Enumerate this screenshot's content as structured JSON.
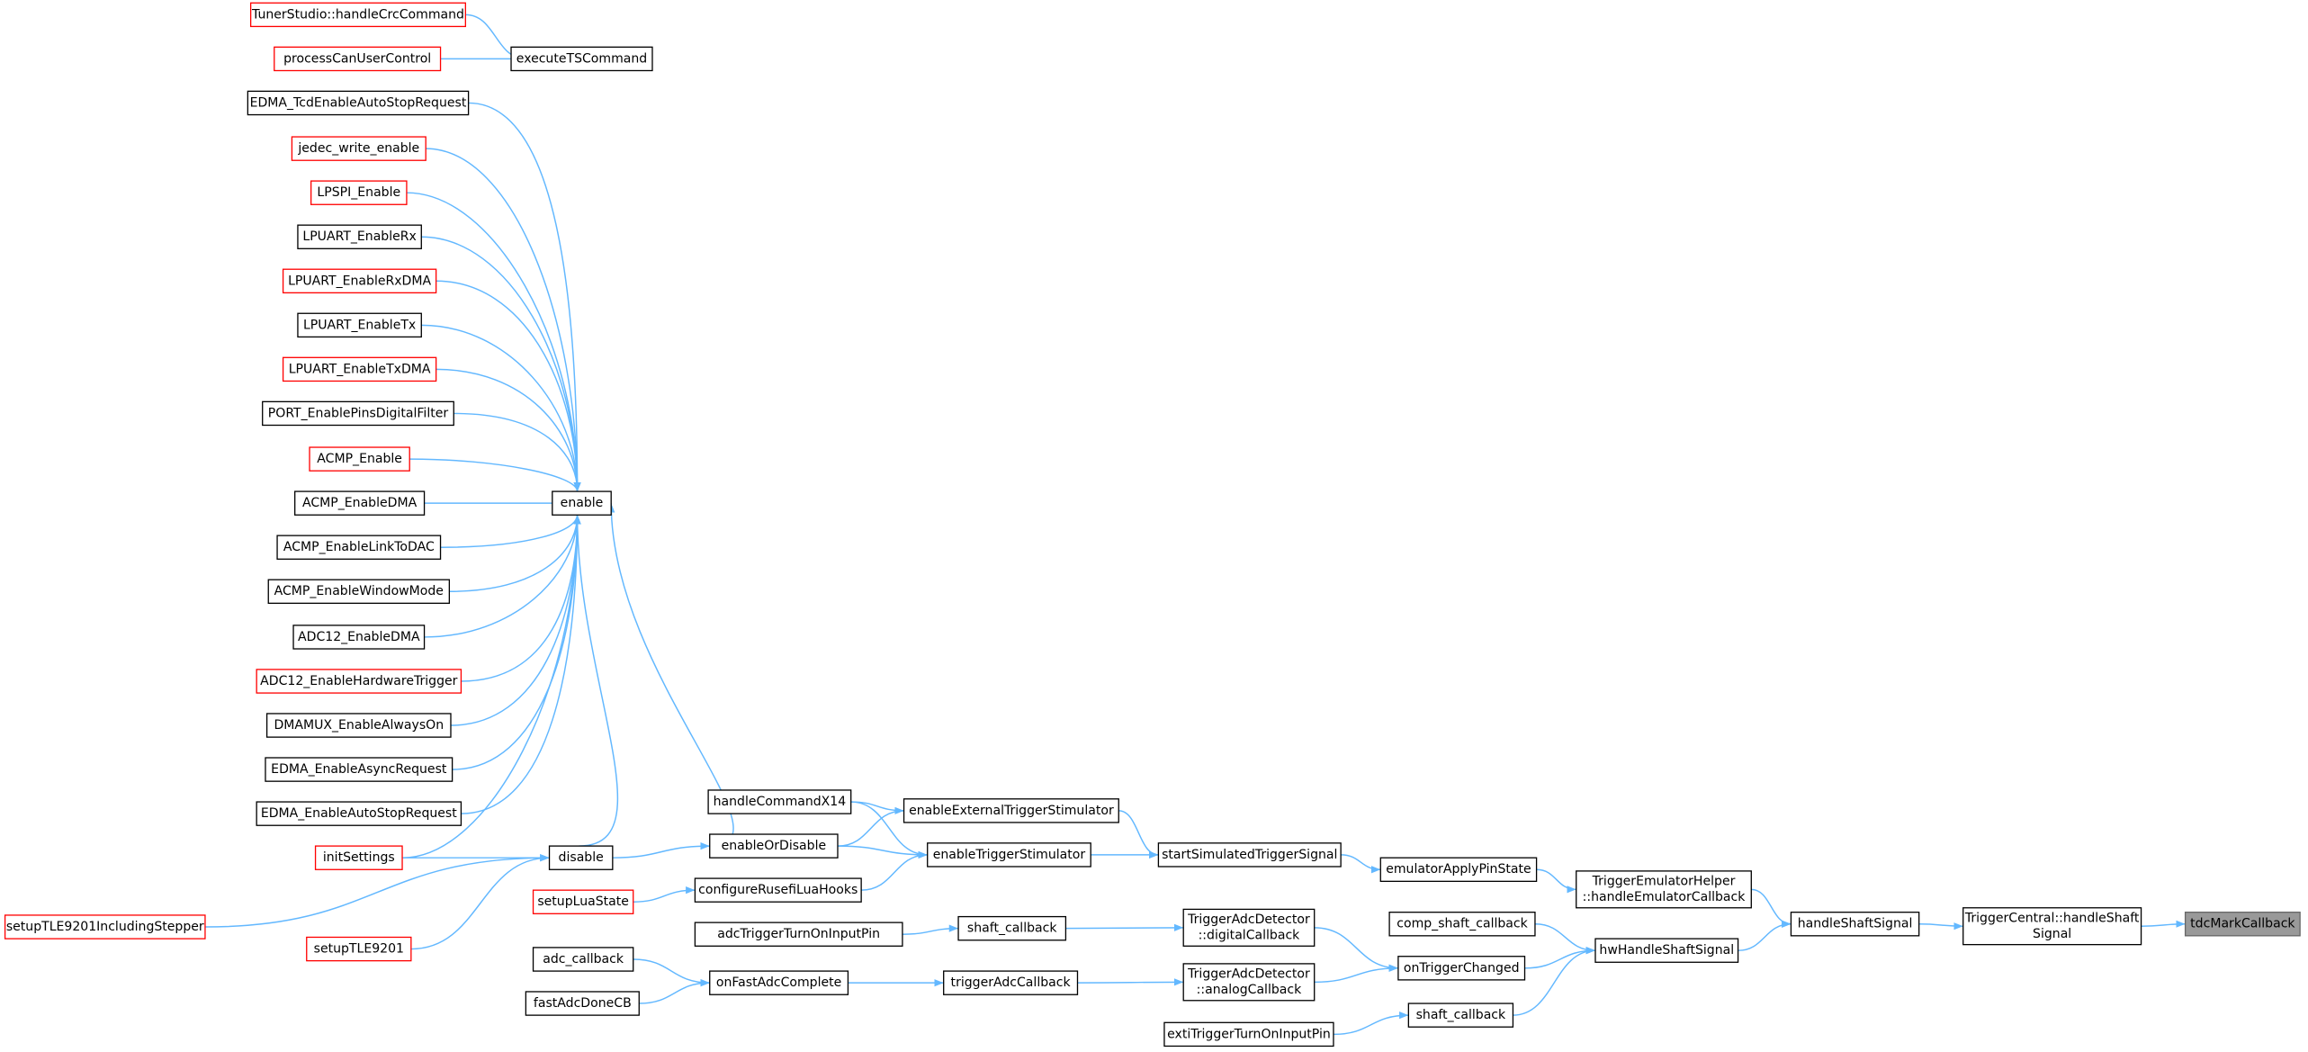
{
  "nodes": [
    {
      "lines": [
        "TunerStudio::handleCrcCommand"
      ]
    },
    {
      "lines": [
        "processCanUserControl"
      ]
    },
    {
      "lines": [
        "executeTSCommand"
      ]
    },
    {
      "lines": [
        "EDMA_TcdEnableAutoStopRequest"
      ]
    },
    {
      "lines": [
        "jedec_write_enable"
      ]
    },
    {
      "lines": [
        "LPSPI_Enable"
      ]
    },
    {
      "lines": [
        "LPUART_EnableRx"
      ]
    },
    {
      "lines": [
        "LPUART_EnableRxDMA"
      ]
    },
    {
      "lines": [
        "LPUART_EnableTx"
      ]
    },
    {
      "lines": [
        "LPUART_EnableTxDMA"
      ]
    },
    {
      "lines": [
        "PORT_EnablePinsDigitalFilter"
      ]
    },
    {
      "lines": [
        "ACMP_Enable"
      ]
    },
    {
      "lines": [
        "ACMP_EnableDMA"
      ]
    },
    {
      "lines": [
        "ACMP_EnableLinkToDAC"
      ]
    },
    {
      "lines": [
        "ACMP_EnableWindowMode"
      ]
    },
    {
      "lines": [
        "ADC12_EnableDMA"
      ]
    },
    {
      "lines": [
        "ADC12_EnableHardwareTrigger"
      ]
    },
    {
      "lines": [
        "DMAMUX_EnableAlwaysOn"
      ]
    },
    {
      "lines": [
        "EDMA_EnableAsyncRequest"
      ]
    },
    {
      "lines": [
        "EDMA_EnableAutoStopRequest"
      ]
    },
    {
      "lines": [
        "initSettings"
      ]
    },
    {
      "lines": [
        "enable"
      ]
    },
    {
      "lines": [
        "disable"
      ]
    },
    {
      "lines": [
        "setupTLE9201IncludingStepper"
      ]
    },
    {
      "lines": [
        "setupTLE9201"
      ]
    },
    {
      "lines": [
        "setupLuaState"
      ]
    },
    {
      "lines": [
        "handleCommandX14"
      ]
    },
    {
      "lines": [
        "enableOrDisable"
      ]
    },
    {
      "lines": [
        "configureRusefiLuaHooks"
      ]
    },
    {
      "lines": [
        "adcTriggerTurnOnInputPin"
      ]
    },
    {
      "lines": [
        "adc_callback"
      ]
    },
    {
      "lines": [
        "fastAdcDoneCB"
      ]
    },
    {
      "lines": [
        "onFastAdcComplete"
      ]
    },
    {
      "lines": [
        "enableExternalTriggerStimulator"
      ]
    },
    {
      "lines": [
        "enableTriggerStimulator"
      ]
    },
    {
      "lines": [
        "shaft_callback"
      ]
    },
    {
      "lines": [
        "triggerAdcCallback"
      ]
    },
    {
      "lines": [
        "startSimulatedTriggerSignal"
      ]
    },
    {
      "lines": [
        "TriggerAdcDetector",
        "::digitalCallback"
      ]
    },
    {
      "lines": [
        "TriggerAdcDetector",
        "::analogCallback"
      ]
    },
    {
      "lines": [
        "extiTriggerTurnOnInputPin"
      ]
    },
    {
      "lines": [
        "emulatorApplyPinState"
      ]
    },
    {
      "lines": [
        "comp_shaft_callback"
      ]
    },
    {
      "lines": [
        "onTriggerChanged"
      ]
    },
    {
      "lines": [
        "shaft_callback"
      ]
    },
    {
      "lines": [
        "TriggerEmulatorHelper",
        "::handleEmulatorCallback"
      ]
    },
    {
      "lines": [
        "hwHandleShaftSignal"
      ]
    },
    {
      "lines": [
        "handleShaftSignal"
      ]
    },
    {
      "lines": [
        "TriggerCentral::handleShaft",
        "Signal"
      ]
    },
    {
      "lines": [
        "tdcMarkCallback"
      ]
    }
  ]
}
